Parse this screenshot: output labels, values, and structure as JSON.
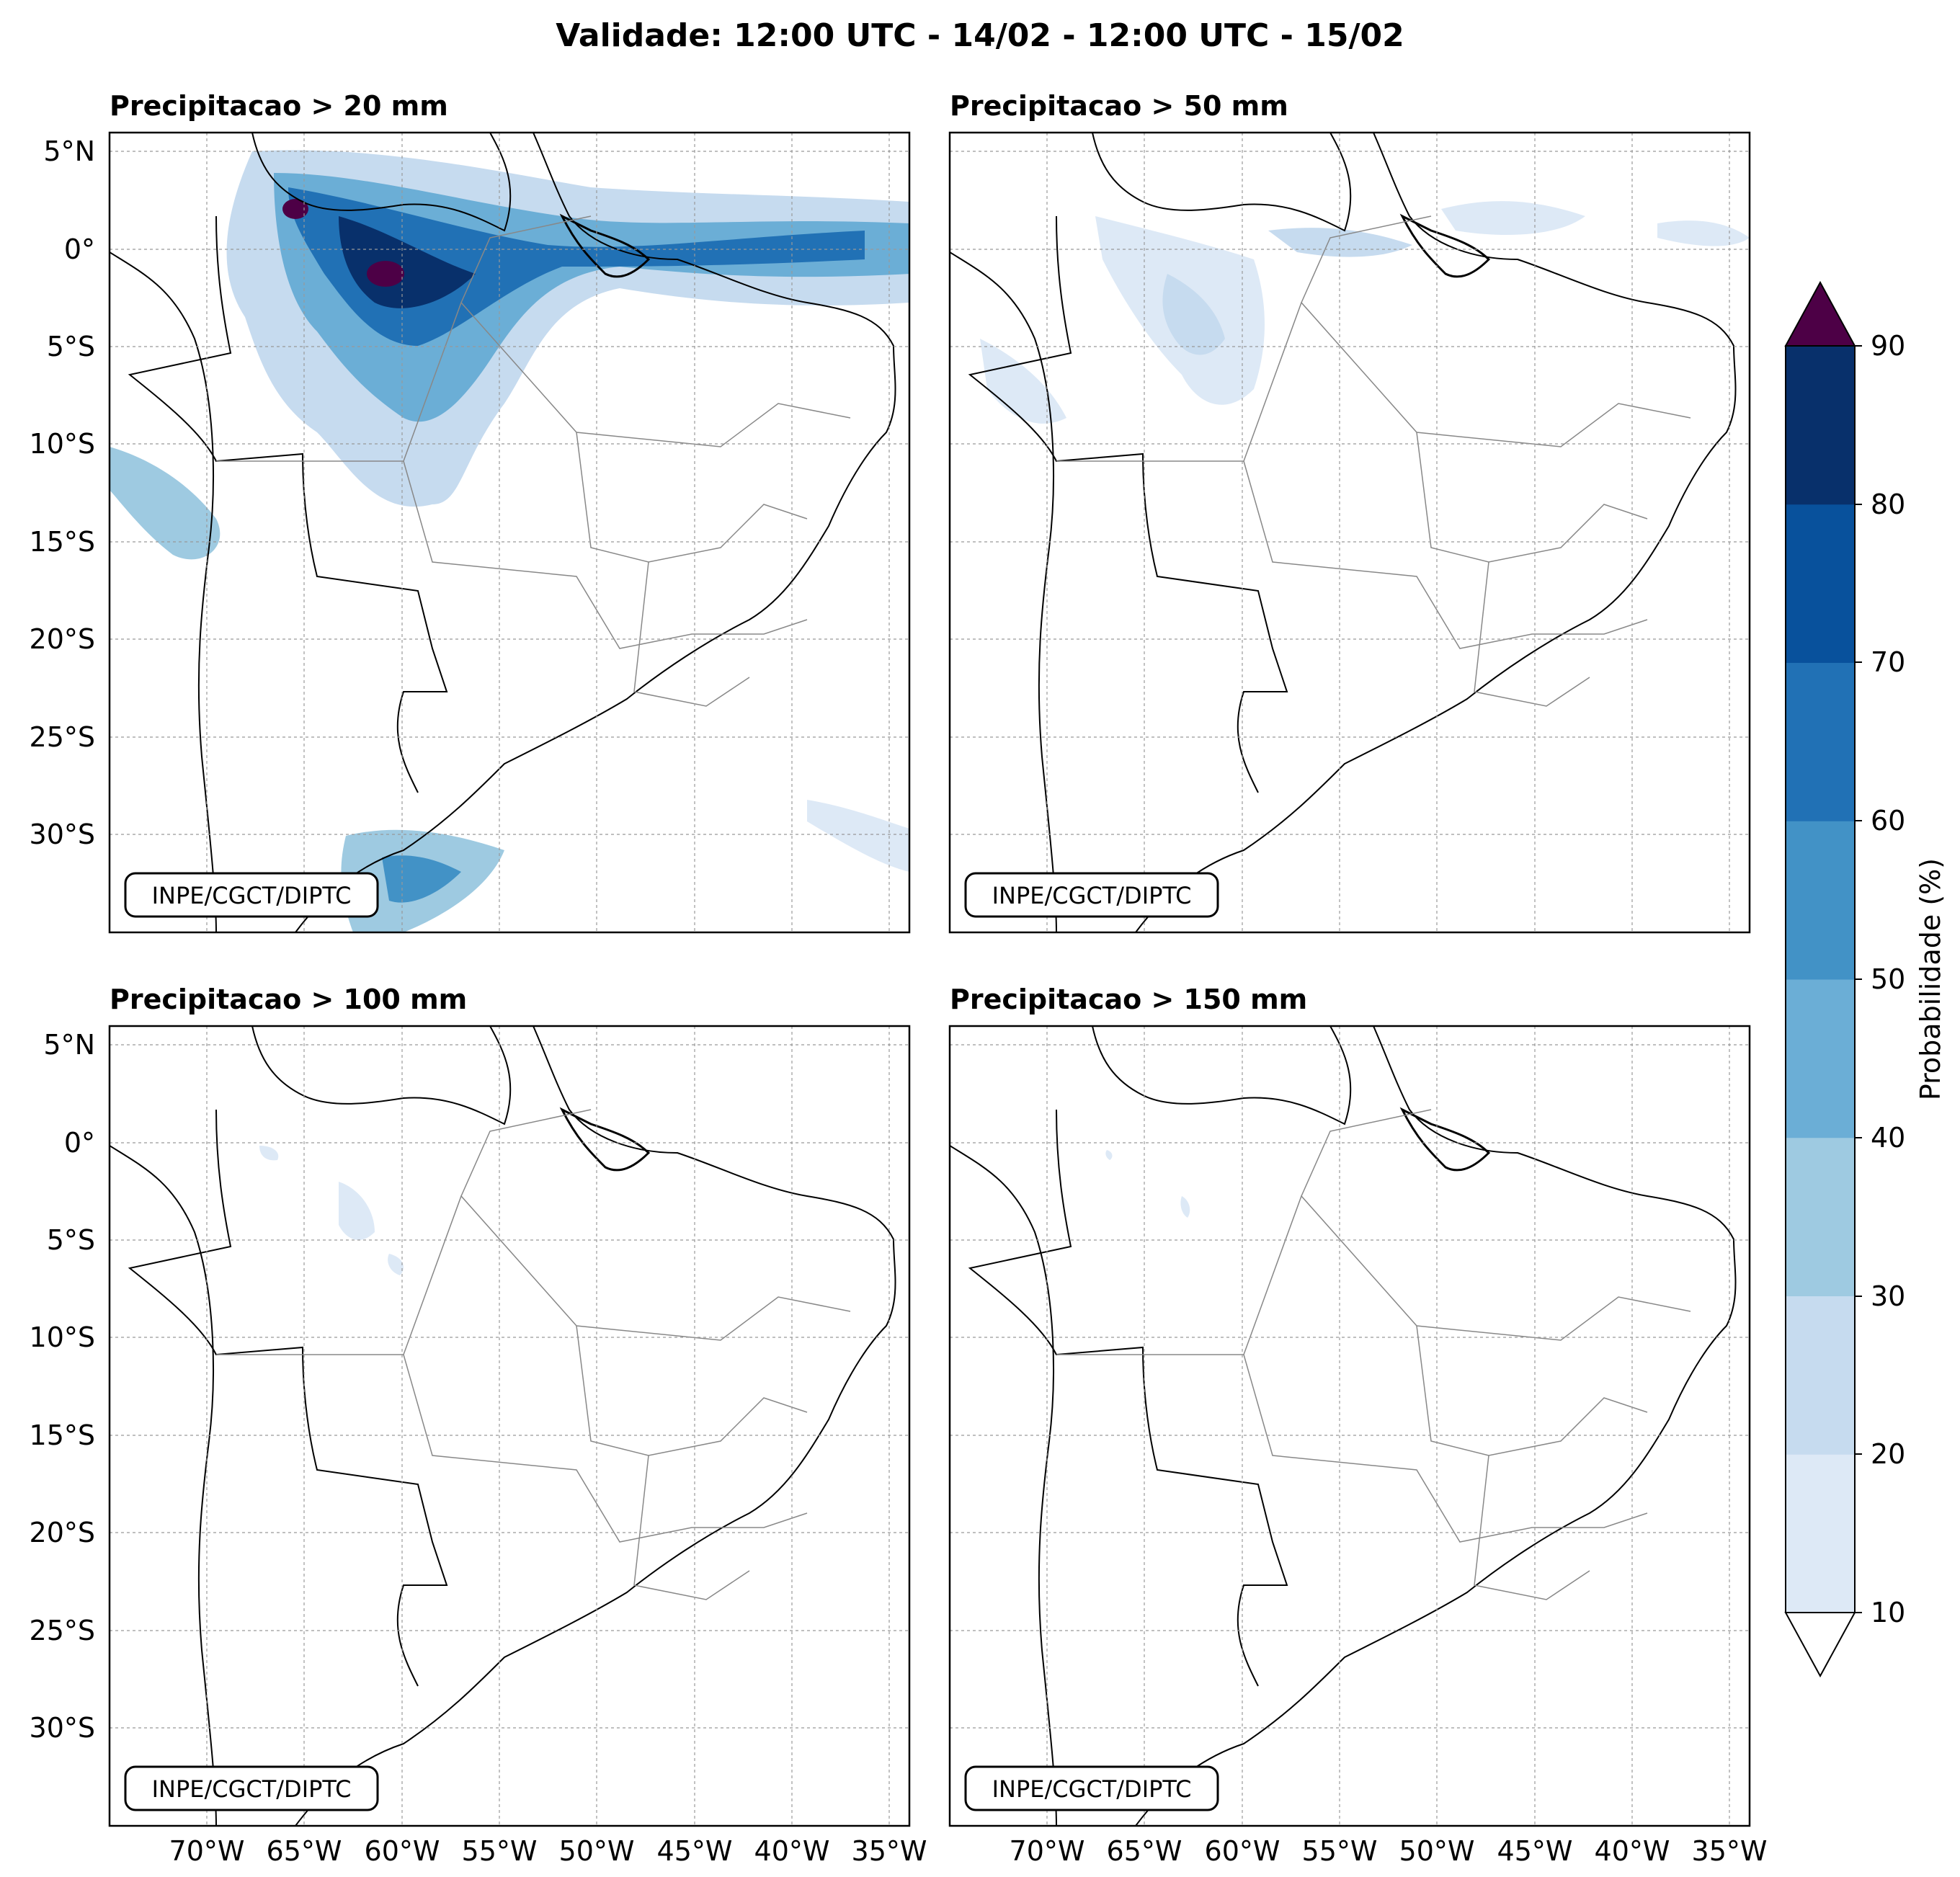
{
  "figure_title": "Validade: 12:00 UTC - 14/02 - 12:00 UTC - 15/02",
  "panels": [
    {
      "title": "Precipitacao > 20 mm",
      "credit": "INPE/CGCT/DIPTC"
    },
    {
      "title": "Precipitacao > 50 mm",
      "credit": "INPE/CGCT/DIPTC"
    },
    {
      "title": "Precipitacao > 100 mm",
      "credit": "INPE/CGCT/DIPTC"
    },
    {
      "title": "Precipitacao > 150 mm",
      "credit": "INPE/CGCT/DIPTC"
    }
  ],
  "lat_labels": [
    "5°N",
    "0°",
    "5°S",
    "10°S",
    "15°S",
    "20°S",
    "25°S",
    "30°S"
  ],
  "lon_labels": [
    "70°W",
    "65°W",
    "60°W",
    "55°W",
    "50°W",
    "45°W",
    "40°W",
    "35°W"
  ],
  "colorbar": {
    "label": "Probabilidade (%)",
    "ticks": [
      "10",
      "20",
      "30",
      "40",
      "50",
      "60",
      "70",
      "80",
      "90"
    ],
    "colors": [
      "#dde9f6",
      "#c6dbef",
      "#9ecae1",
      "#6baed6",
      "#4292c6",
      "#2171b5",
      "#08519c",
      "#08306b"
    ],
    "over_color": "#4d0046",
    "under_color": "#ffffff"
  },
  "map_extent": {
    "lon": [
      -75,
      -34
    ],
    "lat": [
      -35,
      6
    ]
  }
}
